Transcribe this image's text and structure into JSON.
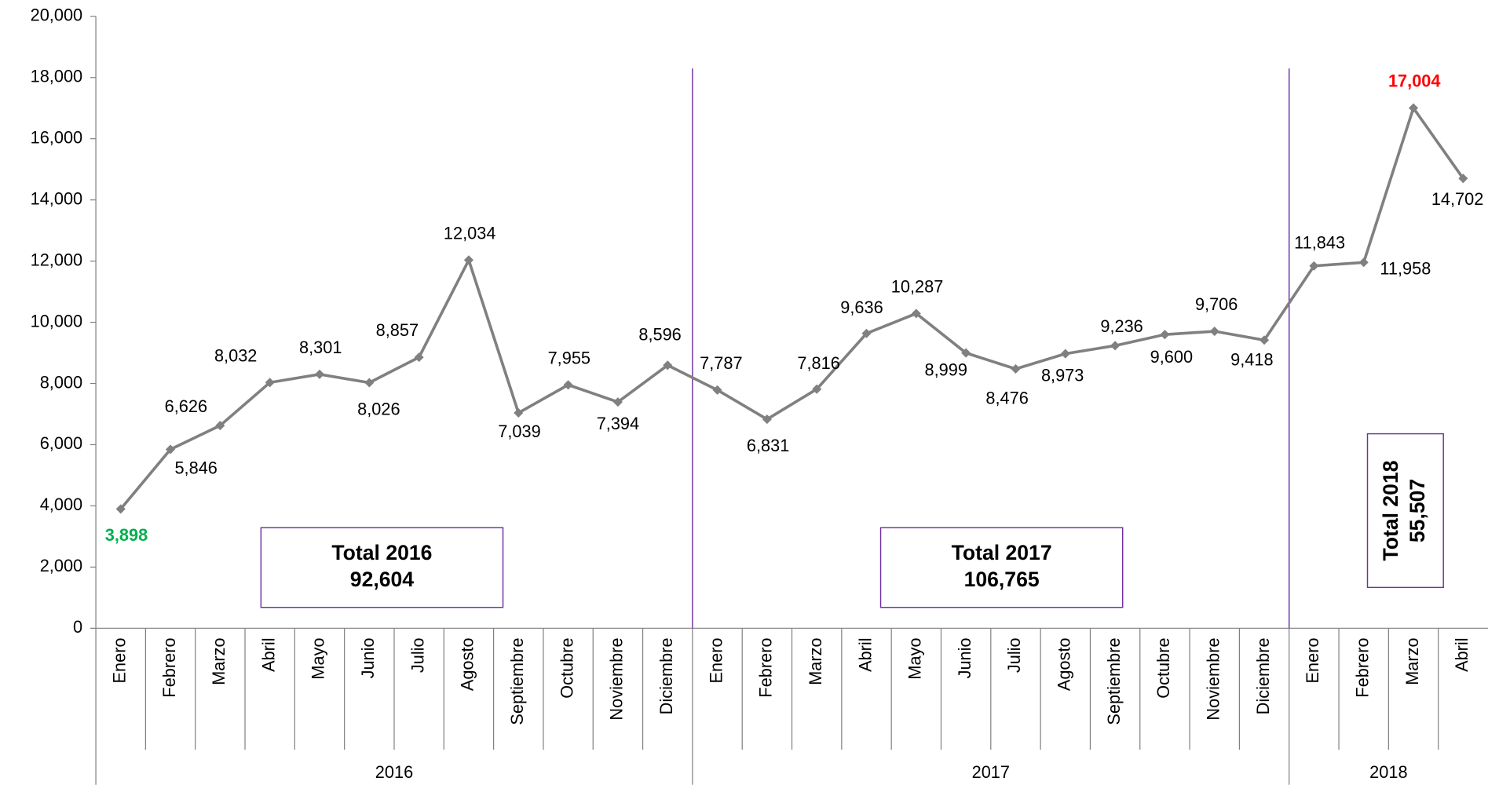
{
  "chart_data": {
    "type": "line",
    "categories": [
      "Enero",
      "Febrero",
      "Marzo",
      "Abril",
      "Mayo",
      "Junio",
      "Julio",
      "Agosto",
      "Septiembre",
      "Octubre",
      "Noviembre",
      "Diciembre",
      "Enero",
      "Febrero",
      "Marzo",
      "Abril",
      "Mayo",
      "Junio",
      "Julio",
      "Agosto",
      "Septiembre",
      "Octubre",
      "Noviembre",
      "Diciembre",
      "Enero",
      "Febrero",
      "Marzo",
      "Abril"
    ],
    "groups": [
      {
        "label": "2016",
        "span": 12
      },
      {
        "label": "2017",
        "span": 12
      },
      {
        "label": "2018",
        "span": 4
      }
    ],
    "series": [
      {
        "color": "#808080",
        "values": [
          3898,
          5846,
          6626,
          8032,
          8301,
          8026,
          8857,
          12034,
          7039,
          7955,
          7394,
          8596,
          7787,
          6831,
          7816,
          9636,
          10287,
          8999,
          8476,
          8973,
          9236,
          9600,
          9706,
          9418,
          11843,
          11958,
          17004,
          14702
        ],
        "value_labels": [
          "3,898",
          "5,846",
          "6,626",
          "8,032",
          "8,301",
          "8,026",
          "8,857",
          "12,034",
          "7,039",
          "7,955",
          "7,394",
          "8,596",
          "7,787",
          "6,831",
          "7,816",
          "9,636",
          "10,287",
          "8,999",
          "8,476",
          "8,973",
          "9,236",
          "9,600",
          "9,706",
          "9,418",
          "11,843",
          "11,958",
          "17,004",
          "14,702"
        ]
      }
    ],
    "min_label_color": "#00b050",
    "max_label_color": "#ff0000",
    "ylim": [
      0,
      20000
    ],
    "yticks": [
      0,
      {
        "value": 2000,
        "label": "2,000"
      },
      {
        "value": 4000,
        "label": "4,000"
      },
      {
        "value": 6000,
        "label": "6,000"
      },
      {
        "value": 8000,
        "label": "8,000"
      },
      {
        "value": 10000,
        "label": "10,000"
      },
      {
        "value": 12000,
        "label": "12,000"
      },
      {
        "value": 14000,
        "label": "14,000"
      },
      {
        "value": 16000,
        "label": "16,000"
      },
      {
        "value": 18000,
        "label": "18,000"
      },
      {
        "value": 20000,
        "label": "20,000"
      }
    ],
    "separator_color": "#7030a0",
    "annotations": [
      {
        "lines": [
          "Total 2016",
          "92,604"
        ]
      },
      {
        "lines": [
          "Total 2017",
          "106,765"
        ]
      },
      {
        "lines": [
          "Total 2018",
          "55,507"
        ]
      }
    ]
  }
}
